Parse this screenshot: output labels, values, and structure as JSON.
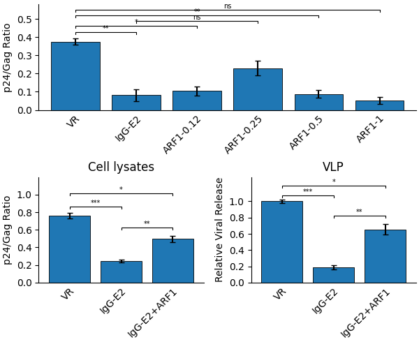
{
  "chart_data": [
    {
      "type": "bar",
      "categories": [
        "VR",
        "IgG-E2",
        "ARF1-0.12",
        "ARF1-0.25",
        "ARF1-0.5",
        "ARF1-1"
      ],
      "values": [
        0.375,
        0.082,
        0.105,
        0.23,
        0.088,
        0.052
      ],
      "errors": [
        0.018,
        0.033,
        0.025,
        0.04,
        0.022,
        0.02
      ],
      "ylabel": "p24/Gag Ratio",
      "ylim": [
        0,
        0.58
      ],
      "yticks": [
        0.0,
        0.1,
        0.2,
        0.3,
        0.4,
        0.5
      ],
      "annotations": [
        {
          "text": "**",
          "from": "VR",
          "to": "IgG-E2",
          "y": 0.415
        },
        {
          "text": "*",
          "from": "VR",
          "to": "ARF1-0.12",
          "y": 0.45
        },
        {
          "text": "ns",
          "from": "IgG-E2",
          "to": "ARF1-0.25",
          "y": 0.478
        },
        {
          "text": "**",
          "from": "VR",
          "to": "ARF1-0.5",
          "y": 0.508
        },
        {
          "text": "ns",
          "from": "VR",
          "to": "ARF1-1",
          "y": 0.538
        }
      ]
    },
    {
      "type": "bar",
      "title": "Cell lysates",
      "categories": [
        "VR",
        "IgG-E2",
        "IgG-E2+ARF1"
      ],
      "values": [
        0.76,
        0.245,
        0.495
      ],
      "errors": [
        0.03,
        0.015,
        0.035
      ],
      "ylabel": "p24/Gag Ratio",
      "ylim": [
        0,
        1.2
      ],
      "yticks": [
        0.0,
        0.2,
        0.4,
        0.6,
        0.8,
        1.0
      ],
      "annotations": [
        {
          "text": "***",
          "from": "VR",
          "to": "IgG-E2",
          "y": 0.84
        },
        {
          "text": "*",
          "from": "VR",
          "to": "IgG-E2+ARF1",
          "y": 0.99
        },
        {
          "text": "**",
          "from": "IgG-E2",
          "to": "IgG-E2+ARF1",
          "y": 0.6
        }
      ]
    },
    {
      "type": "bar",
      "title": "VLP",
      "categories": [
        "VR",
        "IgG-E2",
        "IgG-E2+ARF1"
      ],
      "values": [
        1.0,
        0.19,
        0.655
      ],
      "errors": [
        0.025,
        0.025,
        0.065
      ],
      "ylabel": "Relative Viral Release",
      "ylim": [
        0,
        1.3
      ],
      "yticks": [
        0.0,
        0.2,
        0.4,
        0.6,
        0.8,
        1.0
      ],
      "annotations": [
        {
          "text": "***",
          "from": "VR",
          "to": "IgG-E2",
          "y": 1.05
        },
        {
          "text": "*",
          "from": "VR",
          "to": "IgG-E2+ARF1",
          "y": 1.17
        },
        {
          "text": "**",
          "from": "IgG-E2",
          "to": "IgG-E2+ARF1",
          "y": 0.8
        }
      ]
    }
  ]
}
